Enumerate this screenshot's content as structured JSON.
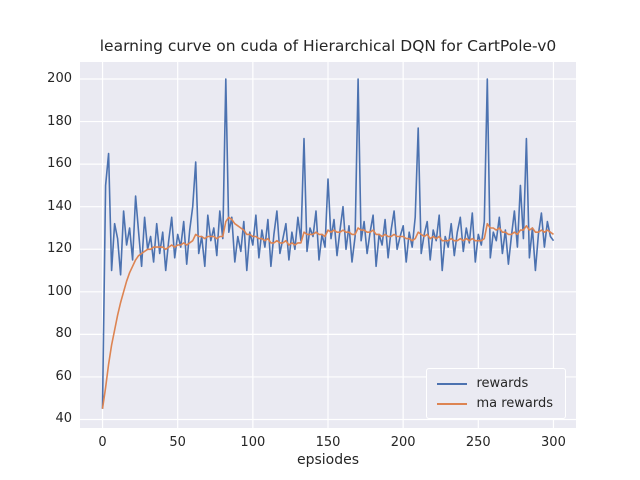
{
  "chart_data": {
    "type": "line",
    "title": "learning curve on cuda of Hierarchical DQN for CartPole-v0",
    "xlabel": "epsiodes",
    "ylabel": "",
    "xlim": [
      -15,
      315
    ],
    "ylim": [
      36,
      208
    ],
    "xticks": [
      0,
      50,
      100,
      150,
      200,
      250,
      300
    ],
    "yticks": [
      40,
      60,
      80,
      100,
      120,
      140,
      160,
      180,
      200
    ],
    "grid": true,
    "legend_position": "lower right",
    "axes_background": "#eaeaf2",
    "grid_color": "#ffffff",
    "x": [
      0,
      2,
      4,
      6,
      8,
      10,
      12,
      14,
      16,
      18,
      20,
      22,
      24,
      26,
      28,
      30,
      32,
      34,
      36,
      38,
      40,
      42,
      44,
      46,
      48,
      50,
      52,
      54,
      56,
      58,
      60,
      62,
      64,
      66,
      68,
      70,
      72,
      74,
      76,
      78,
      80,
      82,
      84,
      86,
      88,
      90,
      92,
      94,
      96,
      98,
      100,
      102,
      104,
      106,
      108,
      110,
      112,
      114,
      116,
      118,
      120,
      122,
      124,
      126,
      128,
      130,
      132,
      134,
      136,
      138,
      140,
      142,
      144,
      146,
      148,
      150,
      152,
      154,
      156,
      158,
      160,
      162,
      164,
      166,
      168,
      170,
      172,
      174,
      176,
      178,
      180,
      182,
      184,
      186,
      188,
      190,
      192,
      194,
      196,
      198,
      200,
      202,
      204,
      206,
      208,
      210,
      212,
      214,
      216,
      218,
      220,
      222,
      224,
      226,
      228,
      230,
      232,
      234,
      236,
      238,
      240,
      242,
      244,
      246,
      248,
      250,
      252,
      254,
      256,
      258,
      260,
      262,
      264,
      266,
      268,
      270,
      272,
      274,
      276,
      278,
      280,
      282,
      284,
      286,
      288,
      290,
      292,
      294,
      296,
      298,
      300
    ],
    "series": [
      {
        "name": "rewards",
        "color": "#4c72b0",
        "values": [
          45,
          150,
          165,
          110,
          132,
          125,
          108,
          138,
          122,
          130,
          115,
          145,
          128,
          112,
          135,
          120,
          126,
          114,
          132,
          118,
          128,
          110,
          124,
          135,
          116,
          127,
          121,
          133,
          113,
          129,
          140,
          161,
          118,
          126,
          112,
          136,
          124,
          130,
          117,
          138,
          125,
          200,
          128,
          135,
          114,
          126,
          119,
          133,
          110,
          128,
          122,
          136,
          116,
          129,
          121,
          134,
          112,
          127,
          138,
          118,
          125,
          132,
          115,
          128,
          120,
          135,
          124,
          172,
          119,
          130,
          126,
          138,
          115,
          127,
          121,
          153,
          125,
          134,
          117,
          129,
          140,
          120,
          131,
          114,
          126,
          200,
          124,
          133,
          118,
          128,
          136,
          112,
          127,
          122,
          134,
          116,
          129,
          138,
          120,
          126,
          131,
          114,
          128,
          121,
          135,
          177,
          118,
          127,
          133,
          115,
          129,
          124,
          136,
          110,
          126,
          121,
          132,
          117,
          128,
          135,
          119,
          130,
          123,
          137,
          114,
          127,
          122,
          133,
          200,
          116,
          128,
          124,
          135,
          118,
          129,
          113,
          126,
          138,
          121,
          150,
          125,
          172,
          116,
          130,
          110,
          127,
          137,
          121,
          133,
          126,
          124
        ]
      },
      {
        "name": "ma rewards",
        "color": "#dd8452",
        "values": [
          45,
          55,
          66,
          75,
          82,
          89,
          95,
          100,
          105,
          109,
          112,
          115,
          117,
          118,
          119,
          120,
          120,
          121,
          121,
          121,
          121,
          120,
          121,
          122,
          121,
          122,
          122,
          123,
          122,
          123,
          124,
          127,
          126,
          126,
          125,
          126,
          126,
          126,
          125,
          126,
          126,
          133,
          135,
          134,
          132,
          131,
          130,
          129,
          127,
          127,
          126,
          126,
          125,
          125,
          124,
          125,
          123,
          123,
          124,
          123,
          123,
          124,
          122,
          123,
          122,
          123,
          123,
          128,
          127,
          127,
          127,
          128,
          127,
          127,
          126,
          129,
          128,
          129,
          128,
          128,
          129,
          128,
          128,
          127,
          127,
          130,
          129,
          129,
          128,
          128,
          129,
          127,
          127,
          126,
          127,
          126,
          126,
          127,
          126,
          126,
          126,
          125,
          125,
          124,
          125,
          128,
          127,
          126,
          127,
          125,
          126,
          125,
          126,
          124,
          124,
          124,
          125,
          124,
          124,
          125,
          124,
          125,
          124,
          125,
          124,
          124,
          124,
          125,
          132,
          130,
          130,
          129,
          130,
          128,
          128,
          127,
          127,
          128,
          127,
          129,
          129,
          131,
          129,
          130,
          128,
          128,
          129,
          128,
          129,
          128,
          127
        ]
      }
    ]
  }
}
